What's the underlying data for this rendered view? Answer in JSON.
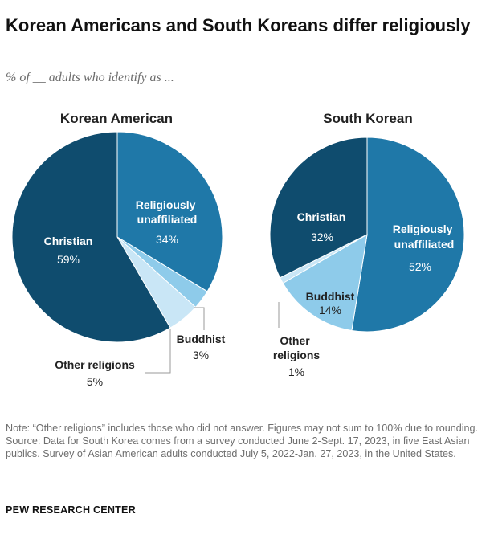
{
  "title": "Korean Americans and South Koreans differ religiously",
  "subtitle": "% of __ adults who identify as ...",
  "chart_data": [
    {
      "type": "pie",
      "title": "Korean American",
      "slices": [
        {
          "label": "Religiously unaffiliated",
          "value": 34,
          "value_label": "34%",
          "color": "#1f78a8"
        },
        {
          "label": "Buddhist",
          "value": 3,
          "value_label": "3%",
          "color": "#8ecbea"
        },
        {
          "label": "Other religions",
          "value": 5,
          "value_label": "5%",
          "color": "#c9e6f6"
        },
        {
          "label": "Christian",
          "value": 59,
          "value_label": "59%",
          "color": "#0f4c6e"
        }
      ]
    },
    {
      "type": "pie",
      "title": "South Korean",
      "slices": [
        {
          "label": "Religiously unaffiliated",
          "value": 52,
          "value_label": "52%",
          "color": "#1f78a8"
        },
        {
          "label": "Buddhist",
          "value": 14,
          "value_label": "14%",
          "color": "#8ecbea"
        },
        {
          "label": "Other religions",
          "value": 1,
          "value_label": "1%",
          "color": "#c9e6f6"
        },
        {
          "label": "Christian",
          "value": 32,
          "value_label": "32%",
          "color": "#0f4c6e"
        }
      ]
    }
  ],
  "footer": {
    "note": "Note: “Other religions” includes those who did not answer. Figures may not sum to 100% due to rounding.",
    "source": "Source: Data for South Korea comes from a survey conducted June 2-Sept. 17, 2023, in five East Asian publics. Survey of Asian American adults conducted July 5, 2022-Jan. 27, 2023, in the United States."
  },
  "brand": "PEW RESEARCH CENTER"
}
